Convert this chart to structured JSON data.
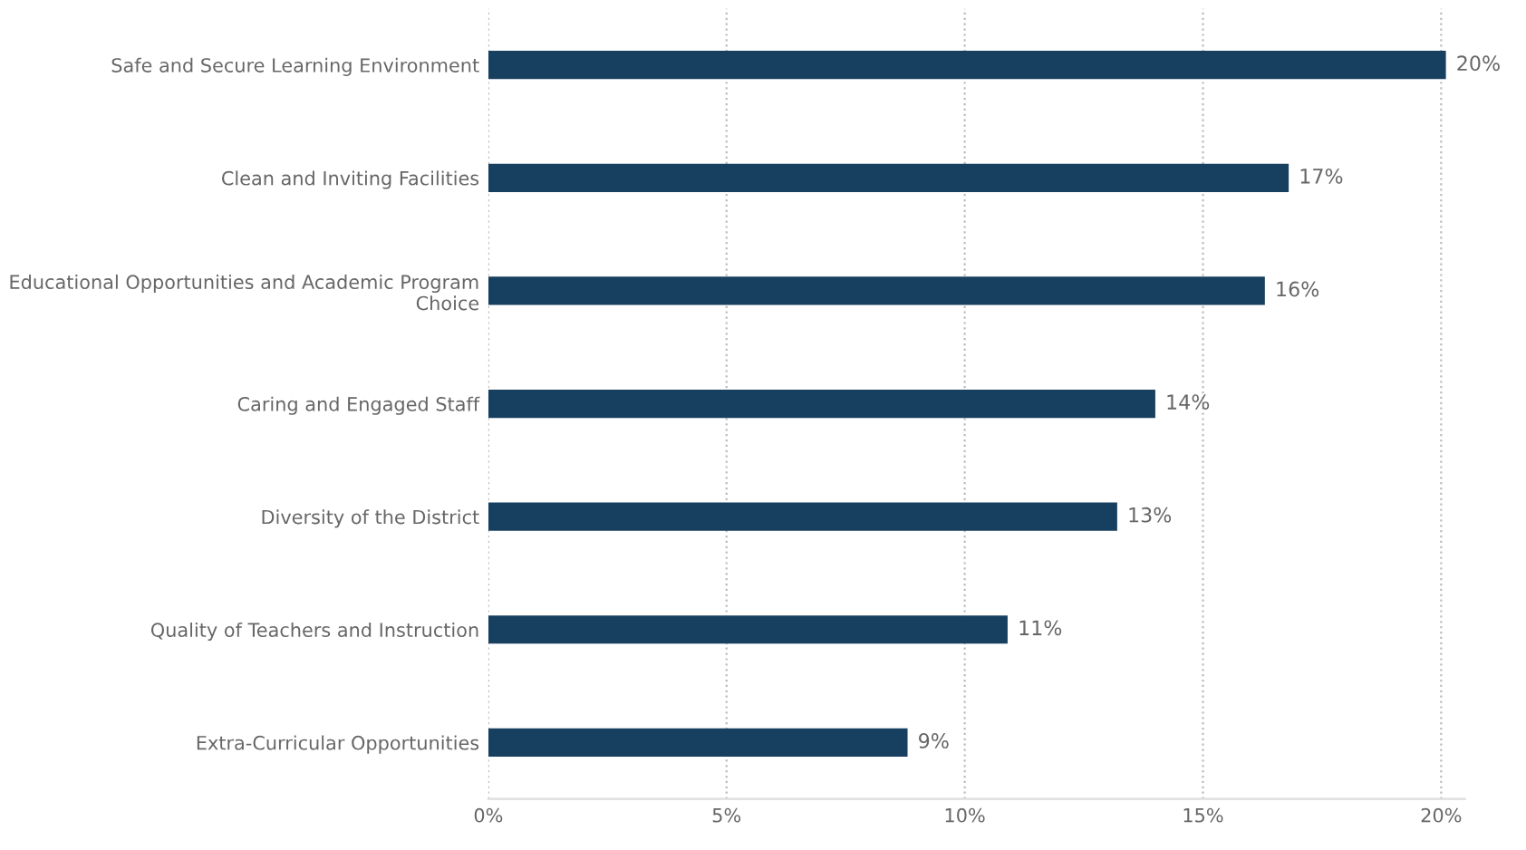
{
  "chart_data": {
    "type": "bar",
    "orientation": "horizontal",
    "categories": [
      "Safe and Secure Learning Environment",
      "Clean and Inviting Facilities",
      "Educational Opportunities and Academic Program\nChoice",
      "Caring and Engaged Staff",
      "Diversity of the District",
      "Quality of Teachers and Instruction",
      "Extra-Curricular Opportunities"
    ],
    "values": [
      20.1,
      16.8,
      16.3,
      14.0,
      13.2,
      10.9,
      8.8
    ],
    "value_labels": [
      "20%",
      "17%",
      "16%",
      "14%",
      "13%",
      "11%",
      "9%"
    ],
    "color": "#173f5f",
    "xlim": [
      0,
      20.5
    ],
    "xticks": [
      {
        "value": 0,
        "label": "0%"
      },
      {
        "value": 5,
        "label": "5%"
      },
      {
        "value": 10,
        "label": "10%"
      },
      {
        "value": 15,
        "label": "15%"
      },
      {
        "value": 20,
        "label": "20%"
      }
    ],
    "grid": "x"
  }
}
